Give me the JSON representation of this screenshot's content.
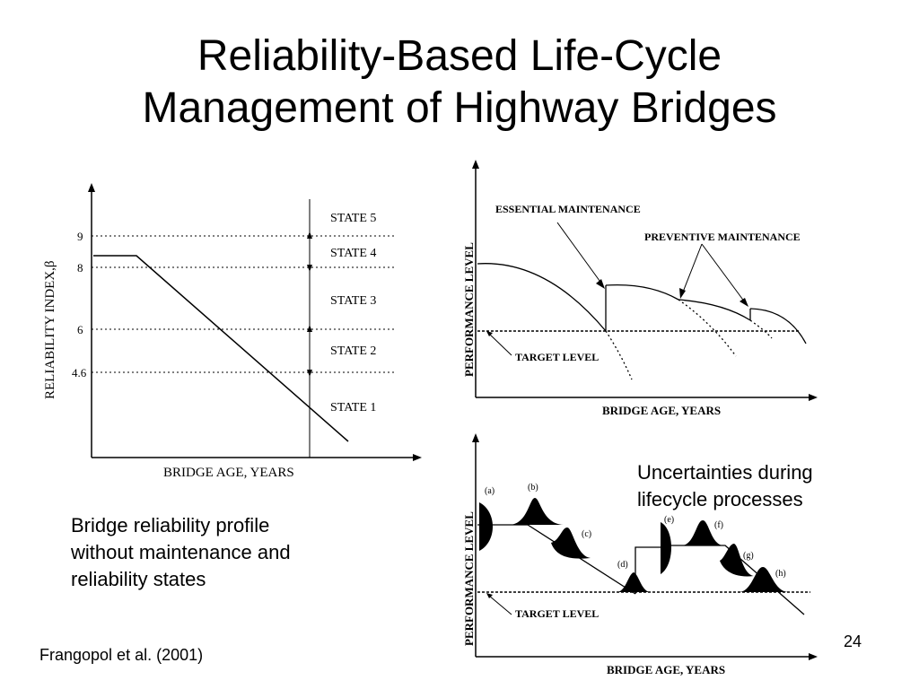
{
  "title": {
    "line1": "Reliability-Based Life-Cycle",
    "line2": "Management of Highway Bridges"
  },
  "left_figure": {
    "ylabel": "RELIABILITY INDEX,β",
    "xlabel": "BRIDGE AGE, YEARS",
    "ticks": [
      "9",
      "8",
      "6",
      "4.6"
    ],
    "states": [
      "STATE 5",
      "STATE 4",
      "STATE 3",
      "STATE 2",
      "STATE 1"
    ]
  },
  "left_caption": {
    "line1": "Bridge reliability profile",
    "line2": "without maintenance and",
    "line3": "reliability states"
  },
  "top_right_figure": {
    "ylabel": "PERFORMANCE   LEVEL",
    "xlabel": "BRIDGE AGE, YEARS",
    "essential": "ESSENTIAL MAINTENANCE",
    "preventive": "PREVENTIVE MAINTENANCE",
    "target": "TARGET LEVEL"
  },
  "bottom_right_figure": {
    "ylabel": "PERFORMANCE   LEVEL",
    "xlabel": "BRIDGE AGE, YEARS",
    "target": "TARGET LEVEL",
    "labels": [
      "(a)",
      "(b)",
      "(c)",
      "(d)",
      "(e)",
      "(f)",
      "(g)",
      "(h)"
    ]
  },
  "right_caption": {
    "line1": "Uncertainties during",
    "line2": "lifecycle processes"
  },
  "citation": "Frangopol et al. (2001)",
  "page_number": "24"
}
